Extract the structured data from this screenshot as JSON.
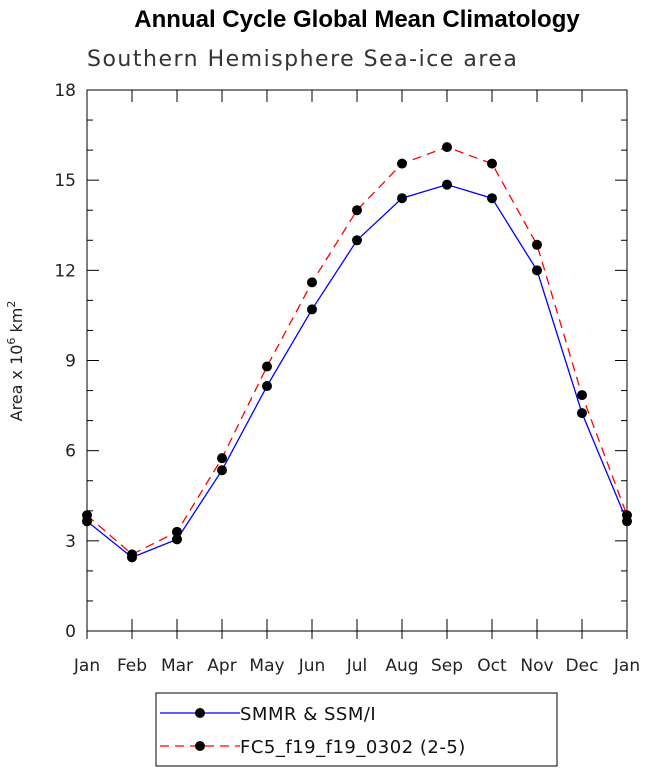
{
  "title": "Annual Cycle Global Mean Climatology",
  "chart_data": {
    "type": "line",
    "title": "Annual Cycle Global Mean Climatology",
    "subtitle": "Southern Hemisphere Sea-ice area",
    "xlabel": "",
    "ylabel": "Area x 10^6 km^2",
    "ylabel_parts": {
      "base": "Area x 10",
      "exp1": "6",
      "mid": " km",
      "exp2": "2"
    },
    "categories": [
      "Jan",
      "Feb",
      "Mar",
      "Apr",
      "May",
      "Jun",
      "Jul",
      "Aug",
      "Sep",
      "Oct",
      "Nov",
      "Dec",
      "Jan"
    ],
    "ylim": [
      0,
      18
    ],
    "yticks": [
      0,
      3,
      6,
      9,
      12,
      15,
      18
    ],
    "grid": false,
    "legend_position": "bottom",
    "series": [
      {
        "name": "SMMR & SSM/I",
        "color": "#0000ff",
        "dash": "solid",
        "values": [
          3.65,
          2.45,
          3.05,
          5.35,
          8.15,
          10.7,
          13.0,
          14.4,
          14.85,
          14.4,
          12.0,
          7.25,
          3.65
        ]
      },
      {
        "name": "FC5_f19_f19_0302 (2-5)",
        "color": "#ff0000",
        "dash": "dashed",
        "values": [
          3.85,
          2.55,
          3.3,
          5.75,
          8.8,
          11.6,
          14.0,
          15.55,
          16.1,
          15.55,
          12.85,
          7.85,
          3.85
        ]
      }
    ]
  }
}
